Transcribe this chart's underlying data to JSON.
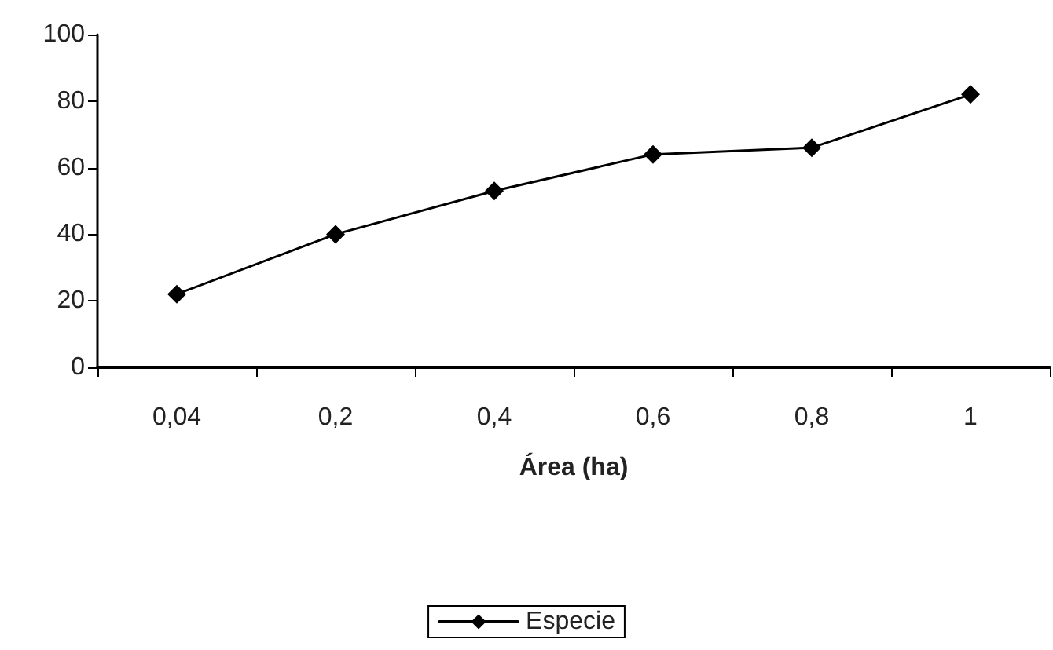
{
  "chart_data": {
    "type": "line",
    "xlabel": "Área (ha)",
    "categories": [
      "0,04",
      "0,2",
      "0,4",
      "0,6",
      "0,8",
      "1"
    ],
    "series": [
      {
        "name": "Especie",
        "color": "#000000",
        "values": [
          22,
          40,
          53,
          64,
          66,
          82
        ]
      }
    ],
    "ylim": [
      0,
      100
    ],
    "yticks": [
      0,
      20,
      40,
      60,
      80,
      100
    ],
    "grid": false,
    "legend": "bottom",
    "marker": "diamond",
    "line_style": "solid"
  }
}
